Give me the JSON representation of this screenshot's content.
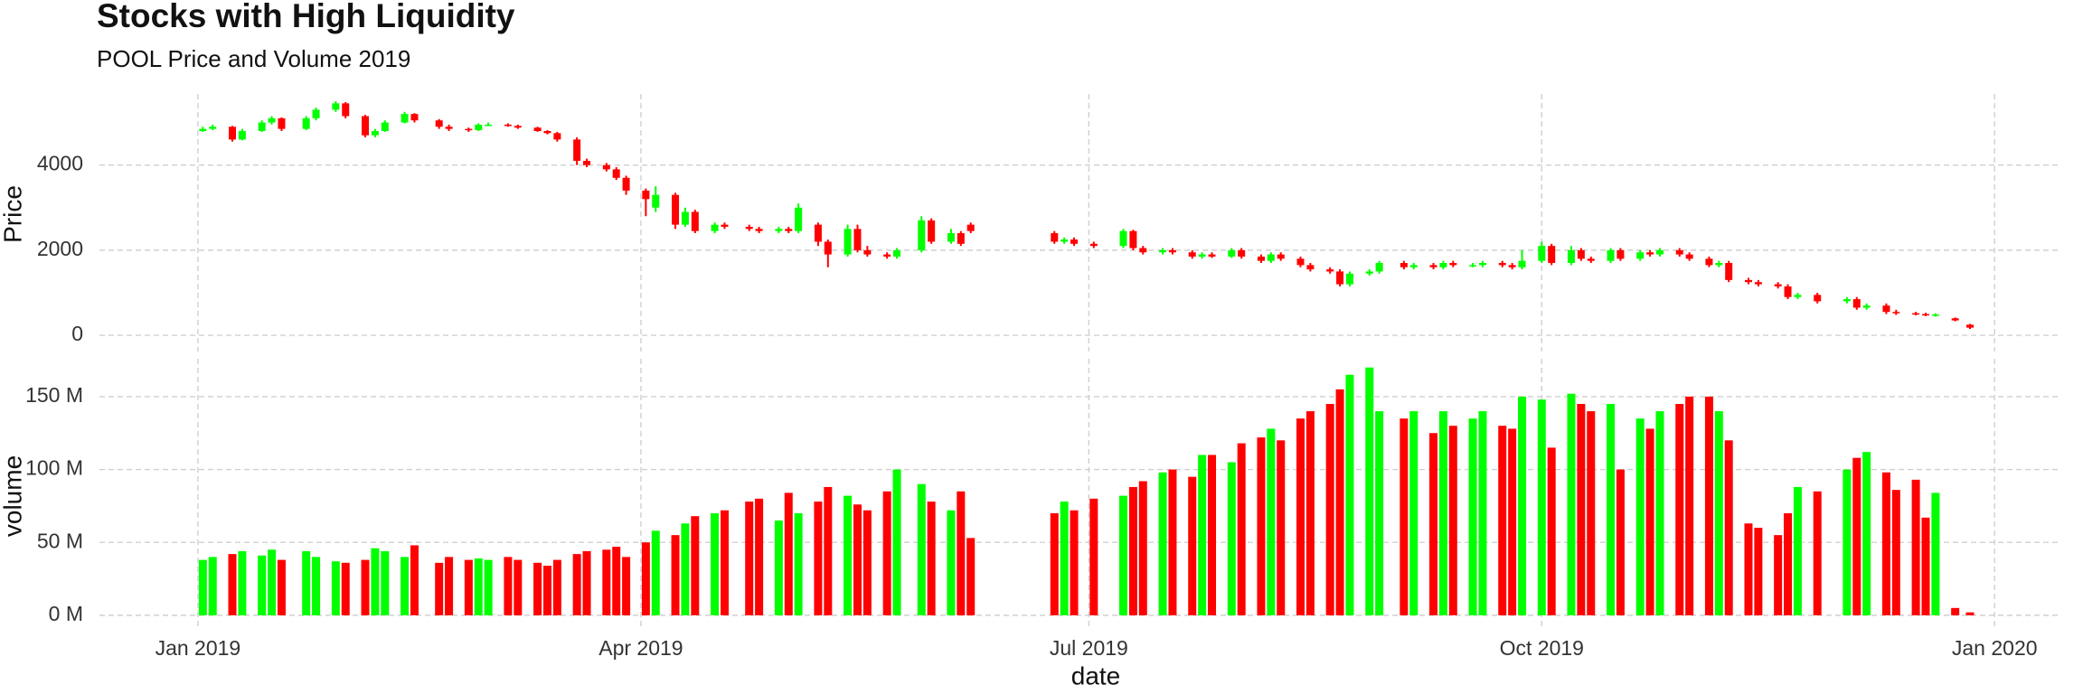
{
  "chart_data": [
    {
      "type": "candlestick",
      "title": "Stocks with High Liquidity",
      "subtitle": "POOL Price and Volume 2019",
      "ylabel": "Price",
      "up_color": "#00ff00",
      "down_color": "#ff0000",
      "ylim": [
        -380,
        5670
      ],
      "yticks": [
        0,
        2000,
        4000
      ],
      "grid": true,
      "x": [
        "2019-01-02",
        "2019-01-04",
        "2019-01-08",
        "2019-01-10",
        "2019-01-14",
        "2019-01-16",
        "2019-01-18",
        "2019-01-23",
        "2019-01-25",
        "2019-01-29",
        "2019-01-31",
        "2019-02-04",
        "2019-02-06",
        "2019-02-08",
        "2019-02-12",
        "2019-02-14",
        "2019-02-19",
        "2019-02-21",
        "2019-02-25",
        "2019-02-27",
        "2019-03-01",
        "2019-03-05",
        "2019-03-07",
        "2019-03-11",
        "2019-03-13",
        "2019-03-15",
        "2019-03-19",
        "2019-03-21",
        "2019-03-25",
        "2019-03-27",
        "2019-03-29",
        "2019-04-02",
        "2019-04-04",
        "2019-04-08",
        "2019-04-10",
        "2019-04-12",
        "2019-04-16",
        "2019-04-18",
        "2019-04-23",
        "2019-04-25",
        "2019-04-29",
        "2019-05-01",
        "2019-05-03",
        "2019-05-07",
        "2019-05-09",
        "2019-05-13",
        "2019-05-15",
        "2019-05-17",
        "2019-05-21",
        "2019-05-23",
        "2019-05-28",
        "2019-05-30",
        "2019-06-03",
        "2019-06-05",
        "2019-06-07",
        "2019-06-24",
        "2019-06-26",
        "2019-06-28",
        "2019-07-02",
        "2019-07-08",
        "2019-07-10",
        "2019-07-12",
        "2019-07-16",
        "2019-07-18",
        "2019-07-22",
        "2019-07-24",
        "2019-07-26",
        "2019-07-30",
        "2019-08-01",
        "2019-08-05",
        "2019-08-07",
        "2019-08-09",
        "2019-08-13",
        "2019-08-15",
        "2019-08-19",
        "2019-08-21",
        "2019-08-23",
        "2019-08-27",
        "2019-08-29",
        "2019-09-03",
        "2019-09-05",
        "2019-09-09",
        "2019-09-11",
        "2019-09-13",
        "2019-09-17",
        "2019-09-19",
        "2019-09-23",
        "2019-09-25",
        "2019-09-27",
        "2019-10-01",
        "2019-10-03",
        "2019-10-07",
        "2019-10-09",
        "2019-10-11",
        "2019-10-15",
        "2019-10-17",
        "2019-10-21",
        "2019-10-23",
        "2019-10-25",
        "2019-10-29",
        "2019-10-31",
        "2019-11-04",
        "2019-11-06",
        "2019-11-08",
        "2019-11-12",
        "2019-11-14",
        "2019-11-18",
        "2019-11-20",
        "2019-11-22",
        "2019-11-26",
        "2019-12-02",
        "2019-12-04",
        "2019-12-06",
        "2019-12-10",
        "2019-12-12",
        "2019-12-16",
        "2019-12-18",
        "2019-12-20",
        "2019-12-24",
        "2019-12-27"
      ],
      "open": [
        4800,
        4850,
        4900,
        4600,
        4800,
        5000,
        5100,
        4850,
        5100,
        5300,
        5450,
        5150,
        4700,
        4800,
        5000,
        5200,
        5050,
        4900,
        4850,
        4820,
        4950,
        4950,
        4920,
        4880,
        4800,
        4750,
        4600,
        4100,
        4000,
        3900,
        3700,
        3400,
        3000,
        3300,
        2600,
        2900,
        2450,
        2600,
        2550,
        2500,
        2450,
        2500,
        2450,
        2600,
        2200,
        1900,
        2500,
        2000,
        1900,
        1850,
        2000,
        2700,
        2200,
        2400,
        2600,
        2400,
        2200,
        2250,
        2150,
        2100,
        2450,
        2050,
        1950,
        2000,
        1950,
        1850,
        1900,
        1850,
        2000,
        1850,
        1750,
        1900,
        1800,
        1650,
        1550,
        1500,
        1200,
        1450,
        1500,
        1700,
        1600,
        1650,
        1600,
        1700,
        1650,
        1650,
        1700,
        1650,
        1600,
        1750,
        2100,
        1700,
        2000,
        1800,
        1750,
        2000,
        1800,
        1950,
        1900,
        2000,
        1900,
        1800,
        1650,
        1700,
        1300,
        1250,
        1200,
        1150,
        900,
        950,
        800,
        850,
        650,
        700,
        550,
        520,
        500,
        470,
        400,
        250
      ],
      "high": [
        4900,
        4950,
        4920,
        4850,
        5050,
        5150,
        5120,
        5150,
        5350,
        5500,
        5480,
        5180,
        4850,
        5050,
        5250,
        5220,
        5080,
        4950,
        4880,
        4980,
        5000,
        4980,
        4950,
        4900,
        4820,
        4780,
        4650,
        4150,
        4050,
        3950,
        3750,
        3450,
        3500,
        3350,
        3000,
        2950,
        2650,
        2650,
        2600,
        2550,
        2550,
        2550,
        3100,
        2650,
        2250,
        2600,
        2600,
        2100,
        1950,
        2050,
        2800,
        2750,
        2500,
        2450,
        2650,
        2450,
        2300,
        2300,
        2200,
        2500,
        2480,
        2100,
        2050,
        2050,
        2000,
        1950,
        1950,
        2050,
        2050,
        1900,
        1950,
        1950,
        1850,
        1700,
        1600,
        1550,
        1500,
        1550,
        1750,
        1750,
        1700,
        1700,
        1750,
        1750,
        1700,
        1750,
        1750,
        1700,
        2000,
        2200,
        2150,
        2100,
        2050,
        1850,
        2050,
        2050,
        2000,
        2000,
        2050,
        2050,
        1950,
        1850,
        1750,
        1750,
        1350,
        1300,
        1250,
        1200,
        1000,
        1000,
        900,
        900,
        750,
        750,
        600,
        550,
        530,
        520,
        420,
        270
      ],
      "low": [
        4780,
        4820,
        4550,
        4580,
        4780,
        4950,
        4800,
        4820,
        5050,
        5250,
        5100,
        4650,
        4650,
        4780,
        4980,
        5000,
        4850,
        4800,
        4780,
        4800,
        4920,
        4900,
        4850,
        4780,
        4720,
        4550,
        4000,
        3950,
        3850,
        3650,
        3300,
        2800,
        2900,
        2500,
        2550,
        2400,
        2400,
        2500,
        2450,
        2400,
        2400,
        2400,
        2400,
        2100,
        1600,
        1850,
        1950,
        1850,
        1800,
        1800,
        1950,
        2150,
        2150,
        2100,
        2400,
        2150,
        2150,
        2100,
        2050,
        2050,
        2000,
        1900,
        1900,
        1900,
        1800,
        1800,
        1820,
        1820,
        1800,
        1700,
        1700,
        1750,
        1600,
        1500,
        1450,
        1150,
        1150,
        1400,
        1450,
        1550,
        1550,
        1550,
        1550,
        1600,
        1600,
        1600,
        1600,
        1550,
        1550,
        1700,
        1650,
        1650,
        1750,
        1700,
        1700,
        1750,
        1750,
        1850,
        1850,
        1850,
        1750,
        1600,
        1600,
        1250,
        1200,
        1150,
        1100,
        850,
        850,
        750,
        750,
        600,
        600,
        500,
        480,
        470,
        450,
        440,
        330,
        150
      ],
      "close": [
        4850,
        4900,
        4600,
        4800,
        5000,
        5100,
        4850,
        5100,
        5300,
        5450,
        5150,
        4700,
        4800,
        5000,
        5200,
        5050,
        4900,
        4850,
        4820,
        4950,
        4950,
        4920,
        4880,
        4800,
        4750,
        4600,
        4100,
        4000,
        3900,
        3700,
        3400,
        3200,
        3300,
        2600,
        2900,
        2450,
        2600,
        2550,
        2500,
        2450,
        2500,
        2450,
        3000,
        2200,
        1900,
        2500,
        2000,
        1900,
        1850,
        2000,
        2700,
        2200,
        2400,
        2150,
        2450,
        2200,
        2250,
        2150,
        2100,
        2450,
        2050,
        1950,
        2000,
        1950,
        1850,
        1900,
        1850,
        2000,
        1850,
        1750,
        1900,
        1800,
        1650,
        1550,
        1500,
        1200,
        1450,
        1500,
        1700,
        1600,
        1650,
        1600,
        1700,
        1650,
        1650,
        1700,
        1650,
        1600,
        1750,
        2100,
        1700,
        2000,
        1800,
        1750,
        2000,
        1800,
        1950,
        1900,
        2000,
        1900,
        1800,
        1650,
        1700,
        1300,
        1250,
        1200,
        1150,
        900,
        950,
        800,
        850,
        650,
        700,
        550,
        520,
        500,
        480,
        490,
        350,
        180
      ]
    },
    {
      "type": "bar",
      "ylabel": "volume",
      "xlabel": "date",
      "xlim": [
        "2018-12-12",
        "2020-01-14"
      ],
      "xticks": [
        {
          "value": "2019-01-01",
          "label": "Jan 2019"
        },
        {
          "value": "2019-04-01",
          "label": "Apr 2019"
        },
        {
          "value": "2019-07-01",
          "label": "Jul 2019"
        },
        {
          "value": "2019-10-01",
          "label": "Oct 2019"
        },
        {
          "value": "2020-01-01",
          "label": "Jan 2020"
        }
      ],
      "ylim": [
        -10,
        176
      ],
      "yticks": [
        {
          "value": 0,
          "label": "0 M"
        },
        {
          "value": 50,
          "label": "50 M"
        },
        {
          "value": 100,
          "label": "100 M"
        },
        {
          "value": 150,
          "label": "150 M"
        }
      ],
      "grid": true,
      "values": [
        38,
        40,
        42,
        44,
        41,
        45,
        38,
        44,
        40,
        37,
        36,
        38,
        46,
        44,
        40,
        48,
        36,
        40,
        38,
        39,
        38,
        40,
        38,
        36,
        34,
        38,
        42,
        44,
        45,
        47,
        40,
        50,
        58,
        55,
        63,
        68,
        70,
        72,
        78,
        80,
        65,
        84,
        70,
        78,
        88,
        82,
        76,
        72,
        85,
        100,
        90,
        78,
        72,
        85,
        53,
        70,
        78,
        72,
        80,
        82,
        88,
        92,
        98,
        100,
        95,
        110,
        110,
        105,
        118,
        122,
        128,
        120,
        135,
        140,
        145,
        155,
        165,
        170,
        140,
        135,
        140,
        125,
        140,
        130,
        135,
        140,
        130,
        128,
        150,
        148,
        115,
        152,
        145,
        140,
        145,
        100,
        135,
        128,
        140,
        145,
        150,
        150,
        140,
        120,
        63,
        60,
        55,
        70,
        88,
        85,
        100,
        108,
        112,
        98,
        86,
        93,
        67,
        84,
        5,
        2
      ]
    }
  ]
}
